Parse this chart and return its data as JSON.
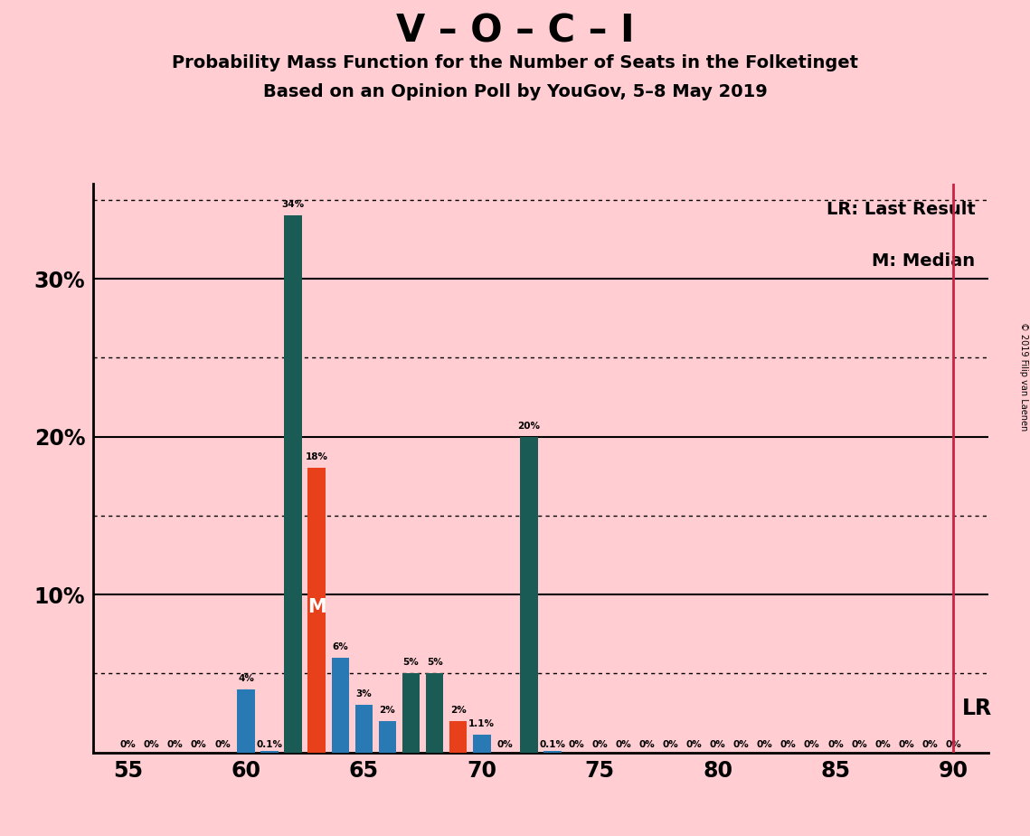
{
  "title": "V – O – C – I",
  "subtitle1": "Probability Mass Function for the Number of Seats in the Folketinget",
  "subtitle2": "Based on an Opinion Poll by YouGov, 5–8 May 2019",
  "copyright": "© 2019 Filip van Laenen",
  "background_color": "#FFCDD2",
  "bar_color_blue": "#2979B5",
  "bar_color_teal": "#1A5C55",
  "bar_color_orange": "#E8401A",
  "lr_line_color": "#CC2244",
  "lr_seat": 90,
  "median_seat": 63,
  "seats": [
    55,
    56,
    57,
    58,
    59,
    60,
    61,
    62,
    63,
    64,
    65,
    66,
    67,
    68,
    69,
    70,
    71,
    72,
    73,
    74,
    75,
    76,
    77,
    78,
    79,
    80,
    81,
    82,
    83,
    84,
    85,
    86,
    87,
    88,
    89,
    90
  ],
  "probabilities": [
    0.0,
    0.0,
    0.0,
    0.0,
    0.0,
    4.0,
    0.1,
    34.0,
    18.0,
    6.0,
    3.0,
    2.0,
    5.0,
    5.0,
    2.0,
    1.1,
    0.0,
    20.0,
    0.1,
    0.0,
    0.0,
    0.0,
    0.0,
    0.0,
    0.0,
    0.0,
    0.0,
    0.0,
    0.0,
    0.0,
    0.0,
    0.0,
    0.0,
    0.0,
    0.0,
    0.0
  ],
  "bar_types": [
    "blue",
    "blue",
    "blue",
    "blue",
    "blue",
    "blue",
    "blue",
    "teal",
    "orange",
    "blue",
    "blue",
    "blue",
    "teal",
    "teal",
    "orange",
    "blue",
    "blue",
    "teal",
    "blue",
    "blue",
    "blue",
    "blue",
    "blue",
    "blue",
    "blue",
    "blue",
    "blue",
    "blue",
    "blue",
    "blue",
    "blue",
    "blue",
    "blue",
    "blue",
    "blue",
    "blue"
  ],
  "label_values": [
    0,
    0,
    0,
    0,
    0,
    4,
    0.1,
    34,
    18,
    6,
    3,
    2,
    5,
    5,
    2,
    1.1,
    0,
    20,
    0.1,
    0,
    0,
    0,
    0,
    0,
    0,
    0,
    0,
    0,
    0,
    0,
    0,
    0,
    0,
    0,
    0,
    0
  ],
  "ylim": [
    0,
    36
  ],
  "xlim": [
    53.5,
    91.5
  ],
  "xticks": [
    55,
    60,
    65,
    70,
    75,
    80,
    85,
    90
  ],
  "ytick_labels": [
    [
      10,
      "10%"
    ],
    [
      20,
      "20%"
    ],
    [
      30,
      "30%"
    ]
  ],
  "solid_grid_lines": [
    10,
    20,
    30
  ],
  "dotted_grid_lines": [
    5,
    15,
    25
  ],
  "axis_top_y": 35,
  "bar_width": 0.75,
  "title_fontsize": 30,
  "subtitle_fontsize": 14,
  "tick_fontsize": 17,
  "label_fontsize": 7.5,
  "legend_fontsize": 14,
  "lr_label_fontsize": 17,
  "median_fontsize": 15
}
